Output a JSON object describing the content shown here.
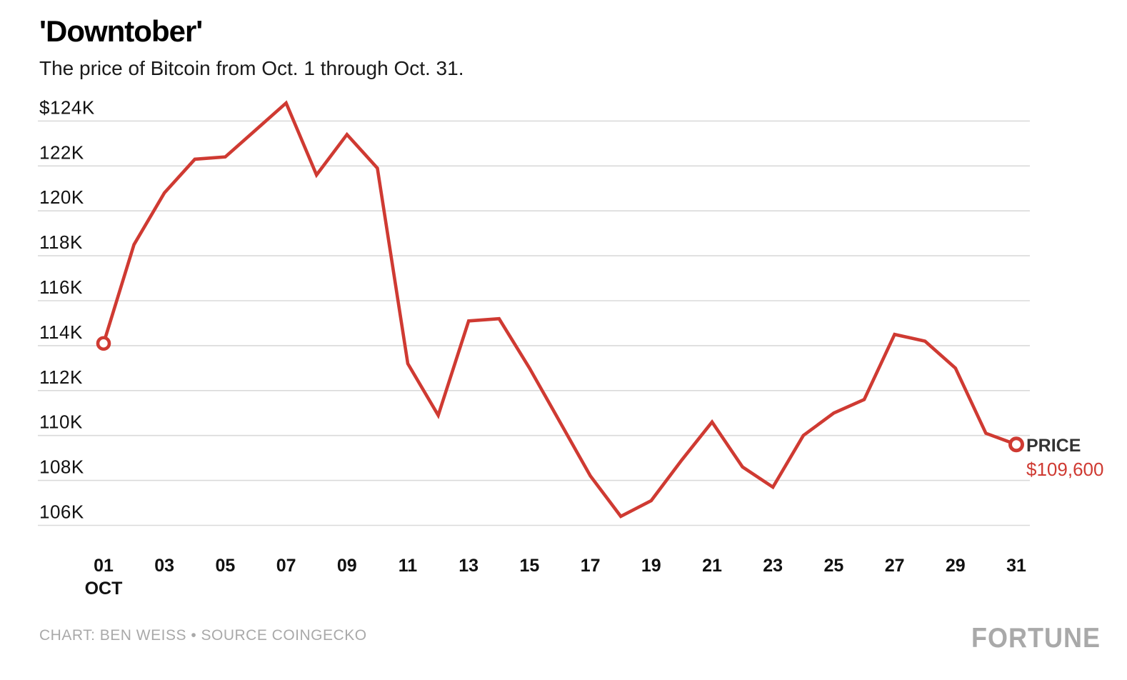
{
  "header": {
    "title": "'Downtober'",
    "subtitle": "The price of Bitcoin from Oct. 1 through Oct. 31."
  },
  "chart_data": {
    "type": "line",
    "title": "'Downtober'",
    "subtitle": "The price of Bitcoin from Oct. 1 through Oct. 31.",
    "x": [
      1,
      2,
      3,
      4,
      5,
      6,
      7,
      8,
      9,
      10,
      11,
      12,
      13,
      14,
      15,
      16,
      17,
      18,
      19,
      20,
      21,
      22,
      23,
      24,
      25,
      26,
      27,
      28,
      29,
      30,
      31
    ],
    "series": [
      {
        "name": "PRICE",
        "values": [
          114100,
          118500,
          120800,
          122300,
          122400,
          123600,
          124800,
          121600,
          123400,
          121900,
          113200,
          110900,
          115100,
          115200,
          113000,
          110600,
          108200,
          106400,
          107100,
          108900,
          110600,
          108600,
          107700,
          110000,
          111000,
          111600,
          114500,
          114200,
          113000,
          110100,
          109600
        ]
      }
    ],
    "y_ticks": [
      {
        "value": 124000,
        "label": "$124K"
      },
      {
        "value": 122000,
        "label": "122K"
      },
      {
        "value": 120000,
        "label": "120K"
      },
      {
        "value": 118000,
        "label": "118K"
      },
      {
        "value": 116000,
        "label": "116K"
      },
      {
        "value": 114000,
        "label": "114K"
      },
      {
        "value": 112000,
        "label": "112K"
      },
      {
        "value": 110000,
        "label": "110K"
      },
      {
        "value": 108000,
        "label": "108K"
      },
      {
        "value": 106000,
        "label": "106K"
      }
    ],
    "x_ticks": [
      {
        "day": 1,
        "label": "01",
        "sublabel": "OCT"
      },
      {
        "day": 3,
        "label": "03"
      },
      {
        "day": 5,
        "label": "05"
      },
      {
        "day": 7,
        "label": "07"
      },
      {
        "day": 9,
        "label": "09"
      },
      {
        "day": 11,
        "label": "11"
      },
      {
        "day": 13,
        "label": "13"
      },
      {
        "day": 15,
        "label": "15"
      },
      {
        "day": 17,
        "label": "17"
      },
      {
        "day": 19,
        "label": "19"
      },
      {
        "day": 21,
        "label": "21"
      },
      {
        "day": 23,
        "label": "23"
      },
      {
        "day": 25,
        "label": "25"
      },
      {
        "day": 27,
        "label": "27"
      },
      {
        "day": 29,
        "label": "29"
      },
      {
        "day": 31,
        "label": "31"
      }
    ],
    "ylim": [
      106000,
      124000
    ],
    "grid": true,
    "legend_position": "none",
    "annotation": {
      "label": "PRICE",
      "value": "$109,600"
    },
    "colors": {
      "line": "#cf3a32",
      "grid": "#dadada",
      "axis_text": "#111111",
      "annotation_label": "#333333",
      "annotation_value": "#cf3a32",
      "muted": "#a9a9a9"
    }
  },
  "footer": {
    "credit": "CHART: BEN WEISS • SOURCE COINGECKO",
    "logo": "FORTUNE"
  }
}
